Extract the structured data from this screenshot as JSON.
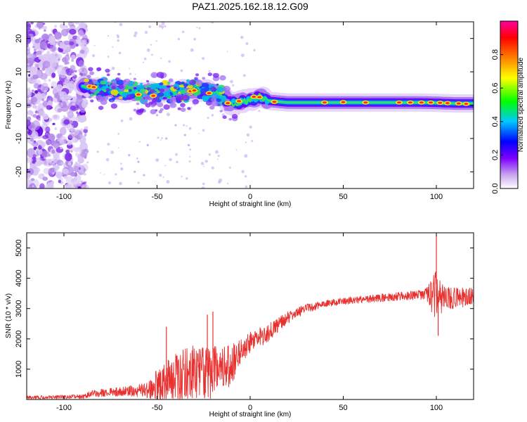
{
  "title": "PAZ1.2025.162.18.12.G09",
  "chart_data": [
    {
      "type": "heatmap",
      "xlabel": "Height of straight line (km)",
      "ylabel": "Frequency (Hz)",
      "xlim": [
        -120,
        120
      ],
      "ylim": [
        -25,
        25
      ],
      "xticks": [
        -100,
        -50,
        0,
        50,
        100
      ],
      "yticks": [
        -20,
        -10,
        0,
        10,
        20
      ],
      "ridge": [
        {
          "x": -90,
          "y": 5.6
        },
        {
          "x": -80,
          "y": 5.0
        },
        {
          "x": -70,
          "y": 4.0
        },
        {
          "x": -60,
          "y": 3.5
        },
        {
          "x": -50,
          "y": 3.8
        },
        {
          "x": -40,
          "y": 4.0
        },
        {
          "x": -30,
          "y": 4.5
        },
        {
          "x": -20,
          "y": 4.0
        },
        {
          "x": -15,
          "y": 2.5
        },
        {
          "x": -10,
          "y": 0.5
        },
        {
          "x": 0,
          "y": 1.5
        },
        {
          "x": 5,
          "y": 2.5
        },
        {
          "x": 10,
          "y": 1.3
        },
        {
          "x": 20,
          "y": 0.8
        },
        {
          "x": 50,
          "y": 0.8
        },
        {
          "x": 90,
          "y": 0.8
        },
        {
          "x": 100,
          "y": 0.7
        },
        {
          "x": 110,
          "y": 0.5
        },
        {
          "x": 120,
          "y": 0.5
        }
      ],
      "noise_region": {
        "x_from": -120,
        "x_to": -88
      },
      "colorbar": {
        "label": "Normalized spectral amplitude",
        "range": [
          0,
          1
        ],
        "ticks": [
          "0.0",
          "0.2",
          "0.4",
          "0.6",
          "0.8"
        ],
        "colors": [
          "#ffffff",
          "#c9a8ee",
          "#7f00ff",
          "#0000ff",
          "#00c8ff",
          "#00ff00",
          "#ffff00",
          "#ff8000",
          "#ff0000",
          "#ff00a0"
        ]
      }
    },
    {
      "type": "line",
      "xlabel": "Height of straight line (km)",
      "ylabel": "SNR (10 * v/v)",
      "xlim": [
        -120,
        120
      ],
      "ylim": [
        0,
        5500
      ],
      "xticks": [
        -100,
        -50,
        0,
        50,
        100
      ],
      "yticks": [
        1000,
        2000,
        3000,
        4000,
        5000
      ],
      "series": [
        {
          "color": "#e8312f",
          "envelope": [
            {
              "x": -120,
              "mean": 60,
              "amp": 60
            },
            {
              "x": -90,
              "mean": 90,
              "amp": 70
            },
            {
              "x": -85,
              "mean": 200,
              "amp": 120
            },
            {
              "x": -70,
              "mean": 250,
              "amp": 150
            },
            {
              "x": -55,
              "mean": 300,
              "amp": 250
            },
            {
              "x": -50,
              "mean": 450,
              "amp": 550
            },
            {
              "x": -40,
              "mean": 750,
              "amp": 800
            },
            {
              "x": -30,
              "mean": 900,
              "amp": 900
            },
            {
              "x": -20,
              "mean": 900,
              "amp": 900
            },
            {
              "x": -10,
              "mean": 1100,
              "amp": 750
            },
            {
              "x": -5,
              "mean": 1600,
              "amp": 450
            },
            {
              "x": 0,
              "mean": 1900,
              "amp": 350
            },
            {
              "x": 10,
              "mean": 2200,
              "amp": 300
            },
            {
              "x": 20,
              "mean": 2700,
              "amp": 200
            },
            {
              "x": 30,
              "mean": 3000,
              "amp": 150
            },
            {
              "x": 40,
              "mean": 3150,
              "amp": 120
            },
            {
              "x": 50,
              "mean": 3250,
              "amp": 120
            },
            {
              "x": 60,
              "mean": 3300,
              "amp": 120
            },
            {
              "x": 70,
              "mean": 3350,
              "amp": 130
            },
            {
              "x": 80,
              "mean": 3400,
              "amp": 140
            },
            {
              "x": 90,
              "mean": 3450,
              "amp": 150
            },
            {
              "x": 95,
              "mean": 3500,
              "amp": 250
            },
            {
              "x": 100,
              "mean": 3400,
              "amp": 900
            },
            {
              "x": 105,
              "mean": 3350,
              "amp": 400
            },
            {
              "x": 110,
              "mean": 3350,
              "amp": 350
            },
            {
              "x": 120,
              "mean": 3400,
              "amp": 300
            }
          ],
          "peaks": [
            {
              "x": 100,
              "y": 5400
            },
            {
              "x": 101,
              "y": 2100
            },
            {
              "x": -20,
              "y": 2900
            },
            {
              "x": -23,
              "y": 2800
            },
            {
              "x": -45,
              "y": 2400
            }
          ]
        }
      ]
    }
  ]
}
